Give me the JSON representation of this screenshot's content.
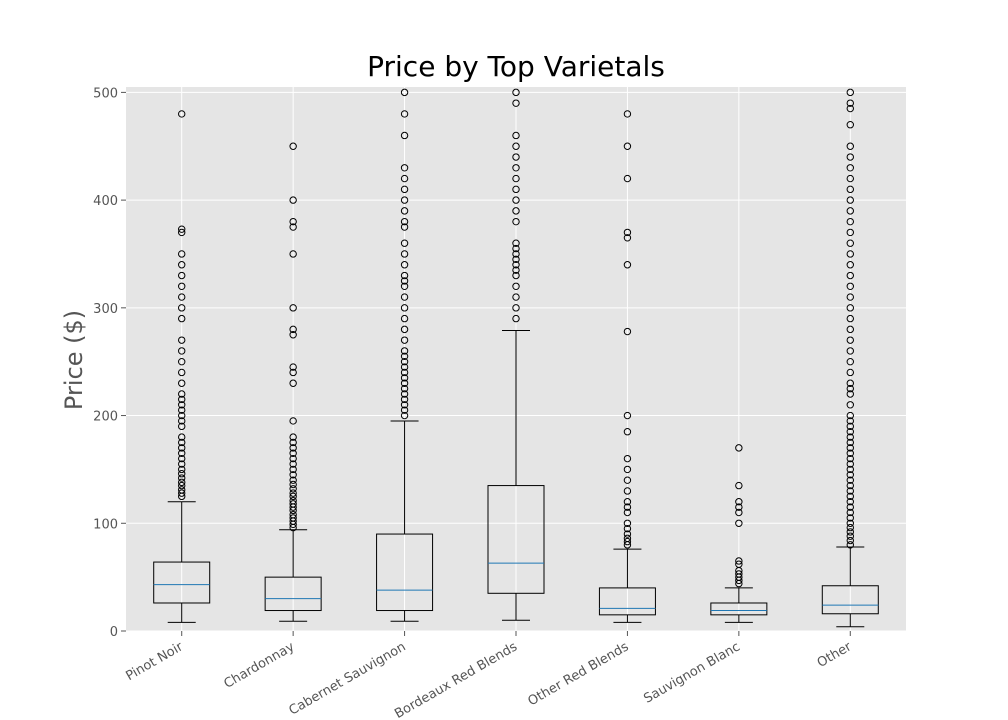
{
  "chart_data": {
    "type": "boxplot",
    "title": "Price by Top Varietals",
    "xlabel": "",
    "ylabel": "Price ($)",
    "ylim": [
      0,
      505
    ],
    "yticks": [
      0,
      100,
      200,
      300,
      400,
      500
    ],
    "grid": true,
    "categories": [
      "Pinot Noir",
      "Chardonnay",
      "Cabernet Sauvignon",
      "Bordeaux Red Blends",
      "Other Red Blends",
      "Sauvignon Blanc",
      "Other"
    ],
    "boxes": [
      {
        "whisker_low": 8,
        "q1": 26,
        "median": 43,
        "q3": 64,
        "whisker_high": 120,
        "outliers": [
          125,
          128,
          131,
          135,
          138,
          142,
          146,
          150,
          155,
          160,
          165,
          170,
          175,
          180,
          190,
          195,
          200,
          205,
          210,
          215,
          220,
          230,
          240,
          250,
          260,
          270,
          290,
          300,
          310,
          320,
          330,
          340,
          350,
          370,
          373,
          480
        ]
      },
      {
        "whisker_low": 9,
        "q1": 19,
        "median": 30,
        "q3": 50,
        "whisker_high": 94,
        "outliers": [
          96,
          99,
          102,
          105,
          108,
          112,
          115,
          118,
          121,
          125,
          128,
          132,
          136,
          140,
          145,
          150,
          155,
          160,
          165,
          170,
          175,
          180,
          195,
          230,
          240,
          245,
          275,
          280,
          300,
          350,
          375,
          380,
          400,
          450
        ]
      },
      {
        "whisker_low": 9,
        "q1": 19,
        "median": 38,
        "q3": 90,
        "whisker_high": 195,
        "outliers": [
          200,
          205,
          210,
          215,
          220,
          225,
          230,
          235,
          240,
          245,
          250,
          255,
          260,
          270,
          280,
          290,
          300,
          310,
          320,
          325,
          330,
          340,
          350,
          360,
          375,
          380,
          390,
          400,
          410,
          420,
          430,
          460,
          480,
          500
        ]
      },
      {
        "whisker_low": 10,
        "q1": 35,
        "median": 63,
        "q3": 135,
        "whisker_high": 279,
        "outliers": [
          290,
          300,
          310,
          320,
          330,
          335,
          340,
          345,
          350,
          355,
          360,
          380,
          390,
          400,
          410,
          420,
          430,
          440,
          450,
          460,
          490,
          500
        ]
      },
      {
        "whisker_low": 8,
        "q1": 15,
        "median": 21,
        "q3": 40,
        "whisker_high": 76,
        "outliers": [
          80,
          83,
          86,
          90,
          95,
          100,
          110,
          115,
          120,
          130,
          140,
          150,
          160,
          185,
          200,
          278,
          340,
          365,
          370,
          420,
          450,
          480
        ]
      },
      {
        "whisker_low": 8,
        "q1": 15,
        "median": 19,
        "q3": 26,
        "whisker_high": 40,
        "outliers": [
          44,
          47,
          50,
          53,
          56,
          62,
          65,
          100,
          110,
          115,
          120,
          135,
          170
        ]
      },
      {
        "whisker_low": 4,
        "q1": 16,
        "median": 24,
        "q3": 42,
        "whisker_high": 78,
        "outliers": [
          80,
          84,
          88,
          92,
          96,
          100,
          105,
          110,
          115,
          120,
          125,
          130,
          135,
          140,
          145,
          150,
          155,
          160,
          165,
          170,
          175,
          180,
          185,
          190,
          195,
          200,
          210,
          220,
          225,
          230,
          240,
          250,
          260,
          270,
          280,
          290,
          300,
          310,
          320,
          330,
          340,
          350,
          360,
          370,
          380,
          390,
          400,
          410,
          420,
          430,
          440,
          450,
          470,
          485,
          490,
          500
        ]
      }
    ]
  }
}
